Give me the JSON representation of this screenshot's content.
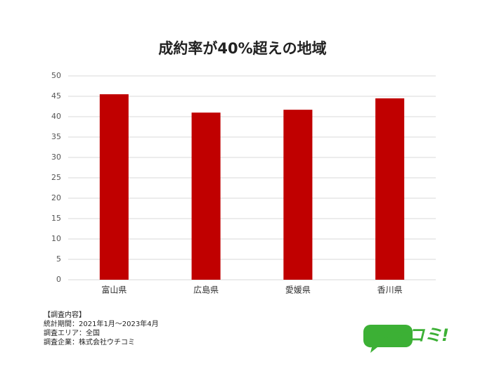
{
  "chart_data": {
    "type": "bar",
    "title": "成約率が40%超えの地域",
    "categories": [
      "富山県",
      "広島県",
      "愛媛県",
      "香川県"
    ],
    "values": [
      45.5,
      41.0,
      41.7,
      44.5
    ],
    "color": "#c00000",
    "ylim": [
      0,
      50
    ],
    "yticks": [
      0,
      5,
      10,
      15,
      20,
      25,
      30,
      35,
      40,
      45,
      50
    ],
    "grid": true
  },
  "notes": [
    "【調査内容】",
    "統計期間：2021年1月～2023年4月",
    "調査エリア：全国",
    "調査企業：株式会社ウチコミ"
  ],
  "logo": "ウチコミ!"
}
